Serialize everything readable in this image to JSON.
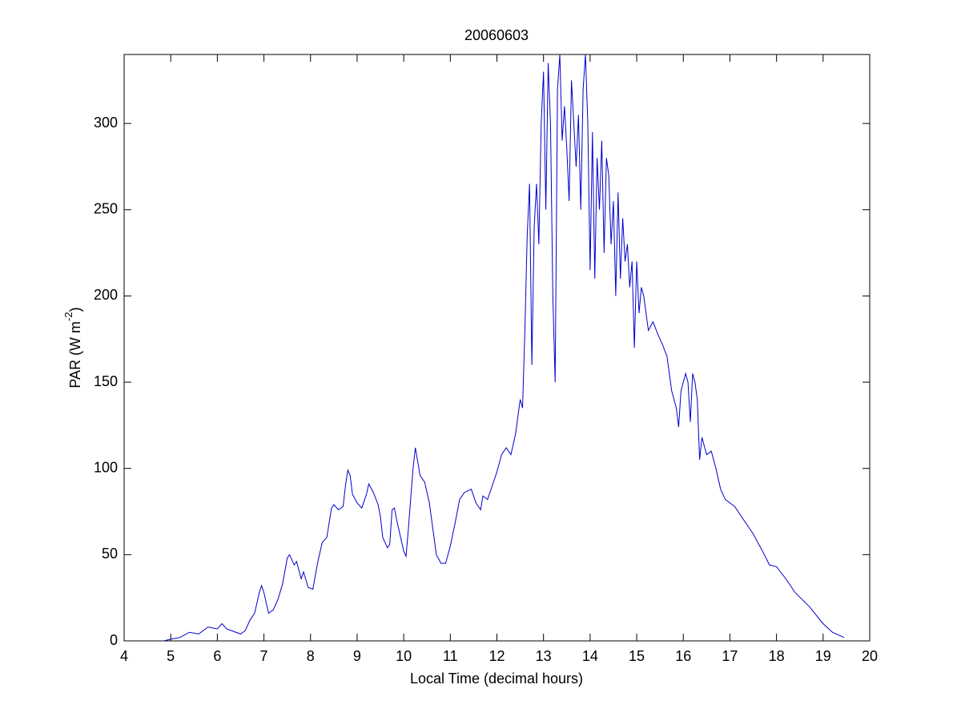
{
  "chart_data": {
    "type": "line",
    "title": "20060603",
    "xlabel": "Local Time (decimal hours)",
    "ylabel_parts": [
      "PAR (W m",
      "-2",
      ")"
    ],
    "xlim": [
      4,
      20
    ],
    "xticks": [
      4,
      5,
      6,
      7,
      8,
      9,
      10,
      11,
      12,
      13,
      14,
      15,
      16,
      17,
      18,
      19,
      20
    ],
    "ylim": [
      0,
      340
    ],
    "yticks": [
      0,
      50,
      100,
      150,
      200,
      250,
      300
    ],
    "grid": false,
    "series": [
      {
        "name": "PAR",
        "color": "#0000cc",
        "x": [
          4.85,
          5.0,
          5.2,
          5.4,
          5.6,
          5.8,
          6.0,
          6.1,
          6.2,
          6.4,
          6.5,
          6.6,
          6.7,
          6.8,
          6.9,
          6.95,
          7.0,
          7.1,
          7.2,
          7.3,
          7.4,
          7.5,
          7.55,
          7.65,
          7.7,
          7.8,
          7.85,
          7.95,
          8.05,
          8.15,
          8.25,
          8.35,
          8.45,
          8.5,
          8.6,
          8.7,
          8.75,
          8.8,
          8.85,
          8.9,
          9.0,
          9.1,
          9.2,
          9.25,
          9.35,
          9.45,
          9.5,
          9.55,
          9.65,
          9.7,
          9.75,
          9.8,
          9.85,
          9.95,
          10.0,
          10.05,
          10.1,
          10.2,
          10.25,
          10.3,
          10.35,
          10.45,
          10.55,
          10.6,
          10.7,
          10.8,
          10.9,
          11.0,
          11.1,
          11.2,
          11.3,
          11.45,
          11.55,
          11.65,
          11.7,
          11.8,
          11.9,
          12.0,
          12.1,
          12.2,
          12.3,
          12.4,
          12.45,
          12.5,
          12.55,
          12.6,
          12.65,
          12.7,
          12.75,
          12.8,
          12.85,
          12.9,
          12.95,
          13.0,
          13.05,
          13.1,
          13.15,
          13.2,
          13.25,
          13.3,
          13.35,
          13.4,
          13.45,
          13.5,
          13.55,
          13.6,
          13.65,
          13.7,
          13.75,
          13.8,
          13.85,
          13.9,
          13.95,
          14.0,
          14.05,
          14.1,
          14.15,
          14.2,
          14.25,
          14.3,
          14.35,
          14.4,
          14.45,
          14.5,
          14.55,
          14.6,
          14.65,
          14.7,
          14.75,
          14.8,
          14.85,
          14.9,
          14.95,
          15.0,
          15.05,
          15.1,
          15.15,
          15.25,
          15.35,
          15.45,
          15.55,
          15.65,
          15.75,
          15.85,
          15.9,
          15.95,
          16.05,
          16.1,
          16.15,
          16.2,
          16.25,
          16.3,
          16.35,
          16.4,
          16.5,
          16.6,
          16.7,
          16.8,
          16.9,
          17.0,
          17.1,
          17.25,
          17.5,
          17.7,
          17.85,
          18.0,
          18.2,
          18.4,
          18.7,
          19.0,
          19.2,
          19.45
        ],
        "values": [
          0,
          1,
          2,
          5,
          4,
          8,
          7,
          10,
          7,
          5,
          4,
          6,
          12,
          16,
          28,
          32,
          28,
          16,
          18,
          24,
          33,
          48,
          50,
          44,
          46,
          36,
          40,
          31,
          30,
          45,
          57,
          60,
          77,
          79,
          76,
          78,
          90,
          99,
          96,
          85,
          80,
          77,
          85,
          91,
          86,
          79,
          72,
          60,
          54,
          56,
          76,
          77,
          70,
          58,
          52,
          49,
          65,
          100,
          112,
          104,
          96,
          92,
          80,
          70,
          50,
          45,
          45,
          55,
          68,
          82,
          86,
          88,
          80,
          76,
          84,
          82,
          90,
          98,
          108,
          112,
          108,
          120,
          130,
          140,
          135,
          180,
          235,
          265,
          160,
          240,
          265,
          230,
          300,
          330,
          250,
          335,
          300,
          200,
          150,
          320,
          340,
          290,
          310,
          285,
          255,
          325,
          300,
          275,
          305,
          250,
          320,
          340,
          300,
          215,
          295,
          210,
          280,
          250,
          290,
          225,
          280,
          270,
          230,
          255,
          200,
          260,
          210,
          245,
          220,
          230,
          205,
          220,
          170,
          220,
          190,
          205,
          200,
          180,
          185,
          178,
          172,
          165,
          145,
          135,
          124,
          145,
          155,
          150,
          127,
          155,
          150,
          140,
          105,
          118,
          108,
          110,
          100,
          88,
          82,
          80,
          78,
          72,
          62,
          52,
          44,
          43,
          36,
          28,
          20,
          10,
          5,
          2
        ]
      }
    ]
  }
}
